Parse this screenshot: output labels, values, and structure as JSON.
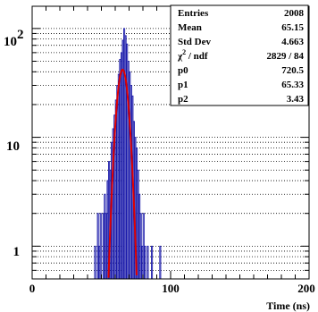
{
  "chart_data": {
    "type": "histogram",
    "xlabel": "Time (ns)",
    "ylabel": "",
    "xlim": [
      0,
      200
    ],
    "ylim": [
      0.5,
      160
    ],
    "y_scale": "log",
    "grid": "horizontal dotted",
    "x_ticks": [
      "0",
      "100",
      "200"
    ],
    "y_ticks": [
      {
        "value": 1,
        "label": "1"
      },
      {
        "value": 10,
        "label": "10"
      },
      {
        "value": 100,
        "label": "10",
        "exponent": "2"
      }
    ],
    "series": [
      {
        "type": "histogram",
        "color": "#1a1aaa",
        "bins": [
          [
            44,
            45,
            0.5
          ],
          [
            45,
            46,
            1
          ],
          [
            46,
            47,
            0.5
          ],
          [
            47,
            48,
            2
          ],
          [
            48,
            49,
            1
          ],
          [
            49,
            50,
            2
          ],
          [
            50,
            51,
            0.5
          ],
          [
            51,
            52,
            2
          ],
          [
            52,
            53,
            3
          ],
          [
            53,
            54,
            2
          ],
          [
            54,
            55,
            4
          ],
          [
            55,
            56,
            6
          ],
          [
            56,
            57,
            5
          ],
          [
            57,
            58,
            9
          ],
          [
            58,
            59,
            12
          ],
          [
            59,
            60,
            16
          ],
          [
            60,
            61,
            22
          ],
          [
            61,
            62,
            30
          ],
          [
            62,
            63,
            38
          ],
          [
            63,
            64,
            52
          ],
          [
            64,
            65,
            60
          ],
          [
            65,
            66,
            78
          ],
          [
            66,
            67,
            100
          ],
          [
            67,
            68,
            86
          ],
          [
            68,
            69,
            72
          ],
          [
            69,
            70,
            50
          ],
          [
            70,
            71,
            40
          ],
          [
            71,
            72,
            30
          ],
          [
            72,
            73,
            24
          ],
          [
            73,
            74,
            14
          ],
          [
            74,
            75,
            10
          ],
          [
            75,
            76,
            8
          ],
          [
            76,
            77,
            5
          ],
          [
            77,
            78,
            3
          ],
          [
            78,
            79,
            2
          ],
          [
            79,
            80,
            1
          ],
          [
            80,
            81,
            2
          ],
          [
            81,
            82,
            1
          ],
          [
            82,
            83,
            0.5
          ],
          [
            83,
            84,
            1
          ],
          [
            84,
            85,
            0.5
          ],
          [
            86,
            87,
            1
          ],
          [
            87,
            88,
            0.5
          ],
          [
            92,
            93,
            1
          ],
          [
            93,
            94,
            0.5
          ]
        ]
      },
      {
        "type": "gaussian_fit",
        "color": "#e00000",
        "p0": 720.5,
        "p1": 65.33,
        "p2": 3.43
      }
    ],
    "stats_box": {
      "rows": [
        {
          "key": "Entries",
          "value": "2008"
        },
        {
          "key": "Mean",
          "value": "65.15"
        },
        {
          "key": "Std Dev",
          "value": "4.663"
        },
        {
          "key": "χ",
          "key_sup": "2",
          "key_tail": " / ndf",
          "value": "2829 / 84"
        },
        {
          "key": "p0",
          "value": "720.5"
        },
        {
          "key": "p1",
          "value": "65.33"
        },
        {
          "key": "p2",
          "value": "3.43"
        }
      ]
    }
  }
}
